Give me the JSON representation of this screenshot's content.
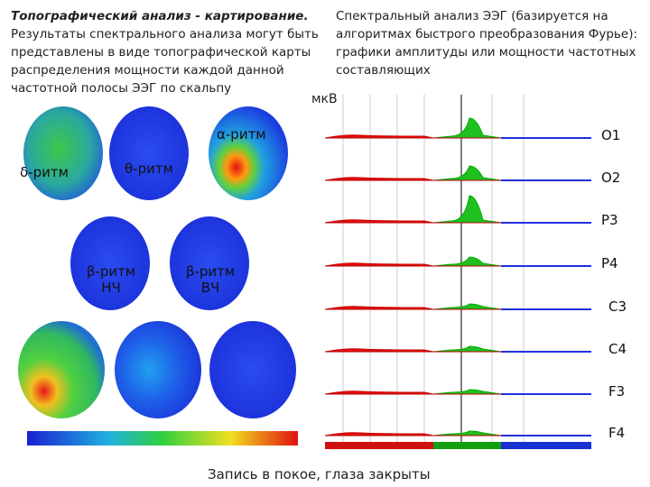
{
  "left_text": {
    "title": "Топографический анализ - картирование.",
    "body": "Результаты спектрального анализа могут быть представлены в виде топографической карты распределения мощности каждой данной частотной полосы ЭЭГ по скальпу"
  },
  "right_text": "Спектральный анализ ЭЭГ (базируется на алгоритмах быстрого преобразования Фурье): графики амплитуды или мощности частотных составляющих",
  "unit": "мкВ",
  "map_labels": [
    "α-ритм",
    "δ-ритм",
    "θ-ритм",
    "β-ритм НЧ",
    "β-ритм ВЧ"
  ],
  "channels": [
    "O1",
    "O2",
    "P3",
    "P4",
    "C3",
    "C4",
    "F3",
    "F4"
  ],
  "caption": "Запись в покое, глаза закрыты"
}
